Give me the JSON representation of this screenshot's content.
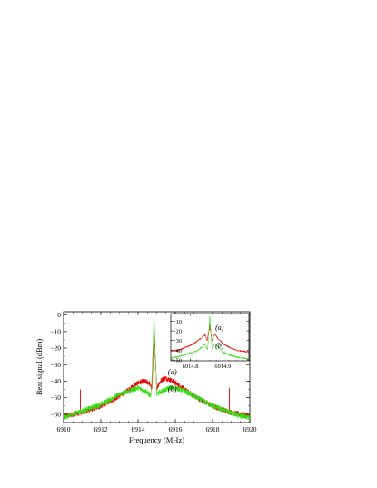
{
  "chart_data": [
    {
      "type": "line",
      "title": "",
      "xlabel": "Frequency (MHz)",
      "ylabel": "Beat signal (dBm)",
      "xlim": [
        6910,
        6920
      ],
      "ylim": [
        -65,
        2
      ],
      "xticks": [
        6910,
        6912,
        6914,
        6916,
        6918,
        6920
      ],
      "yticks": [
        0,
        -10,
        -20,
        -30,
        -40,
        -50,
        -60
      ],
      "xtick_labels": [
        "6910",
        "6912",
        "6914",
        "6916",
        "6918",
        "6920"
      ],
      "ytick_labels": [
        "0",
        "−10",
        "−20",
        "−30",
        "−40",
        "−50",
        "−60"
      ],
      "grid": false,
      "annotations": [
        {
          "text": "(a)",
          "x": 6915.6,
          "y": -36
        },
        {
          "text": "(b)",
          "x": 6915.6,
          "y": -46
        }
      ],
      "series": [
        {
          "label": "(a)",
          "color": "#e60000",
          "x": [
            6910,
            6910.5,
            6911,
            6911.5,
            6912,
            6912.5,
            6913,
            6913.5,
            6914,
            6914.3,
            6914.6,
            6914.75,
            6914.86,
            6915,
            6915.2,
            6915.4,
            6915.7,
            6916,
            6916.5,
            6917,
            6917.5,
            6918,
            6918.5,
            6919,
            6919.5,
            6920
          ],
          "y": [
            -61,
            -60,
            -59,
            -57,
            -55,
            -52,
            -49,
            -45,
            -41,
            -40,
            -41,
            -45,
            -10,
            -44,
            -40,
            -38,
            -39,
            -41,
            -45,
            -49,
            -52,
            -55,
            -57,
            -59,
            -60,
            -61
          ],
          "spurs": [
            {
              "x": 6910.9,
              "y": -45
            },
            {
              "x": 6911.1,
              "y": -58
            },
            {
              "x": 6918.7,
              "y": -58
            },
            {
              "x": 6918.9,
              "y": -44
            }
          ]
        },
        {
          "label": "(b)",
          "color": "#33dd11",
          "x": [
            6910,
            6910.5,
            6911,
            6911.5,
            6912,
            6912.5,
            6913,
            6913.5,
            6914,
            6914.4,
            6914.7,
            6914.86,
            6915,
            6915.3,
            6915.7,
            6916,
            6916.5,
            6917,
            6917.5,
            6918,
            6918.5,
            6919,
            6919.5,
            6920
          ],
          "y": [
            -62,
            -60,
            -58,
            -56,
            -54,
            -51,
            -48,
            -46,
            -44,
            -46,
            -49,
            0,
            -48,
            -46,
            -44,
            -44,
            -46,
            -49,
            -52,
            -55,
            -57,
            -59,
            -61,
            -62
          ]
        }
      ]
    },
    {
      "type": "line",
      "title": "",
      "xlabel": "",
      "ylabel": "",
      "xlim": [
        6914.74,
        6914.98
      ],
      "ylim": [
        -51,
        -2
      ],
      "xticks": [
        6914.8,
        6914.9
      ],
      "yticks": [
        -10,
        -20,
        -30,
        -40,
        -50
      ],
      "xtick_labels": [
        "6914.8",
        "6914.9"
      ],
      "ytick_labels": [
        "−10",
        "−20",
        "−30",
        "−40",
        "−50"
      ],
      "grid": false,
      "annotations": [
        {
          "text": "(a)",
          "x": 6914.877,
          "y": -19
        },
        {
          "text": "(b)",
          "x": 6914.877,
          "y": -38
        }
      ],
      "series": [
        {
          "label": "(a)",
          "color": "#e60000",
          "x": [
            6914.74,
            6914.76,
            6914.78,
            6914.8,
            6914.82,
            6914.835,
            6914.845,
            6914.852,
            6914.86,
            6914.866,
            6914.875,
            6914.885,
            6914.9,
            6914.92,
            6914.94,
            6914.96,
            6914.98
          ],
          "y": [
            -41,
            -40,
            -38,
            -35,
            -31,
            -27,
            -24,
            -30,
            -12,
            -30,
            -23,
            -28,
            -33,
            -37,
            -40,
            -41,
            -42
          ]
        },
        {
          "label": "(b)",
          "color": "#33dd11",
          "x": [
            6914.74,
            6914.76,
            6914.78,
            6914.8,
            6914.82,
            6914.835,
            6914.845,
            6914.853,
            6914.86,
            6914.867,
            6914.875,
            6914.885,
            6914.9,
            6914.92,
            6914.94,
            6914.96,
            6914.98
          ],
          "y": [
            -48,
            -47,
            -45,
            -43,
            -41,
            -37,
            -34,
            -40,
            -5,
            -40,
            -33,
            -37,
            -42,
            -45,
            -47,
            -48,
            -49
          ]
        }
      ]
    }
  ]
}
